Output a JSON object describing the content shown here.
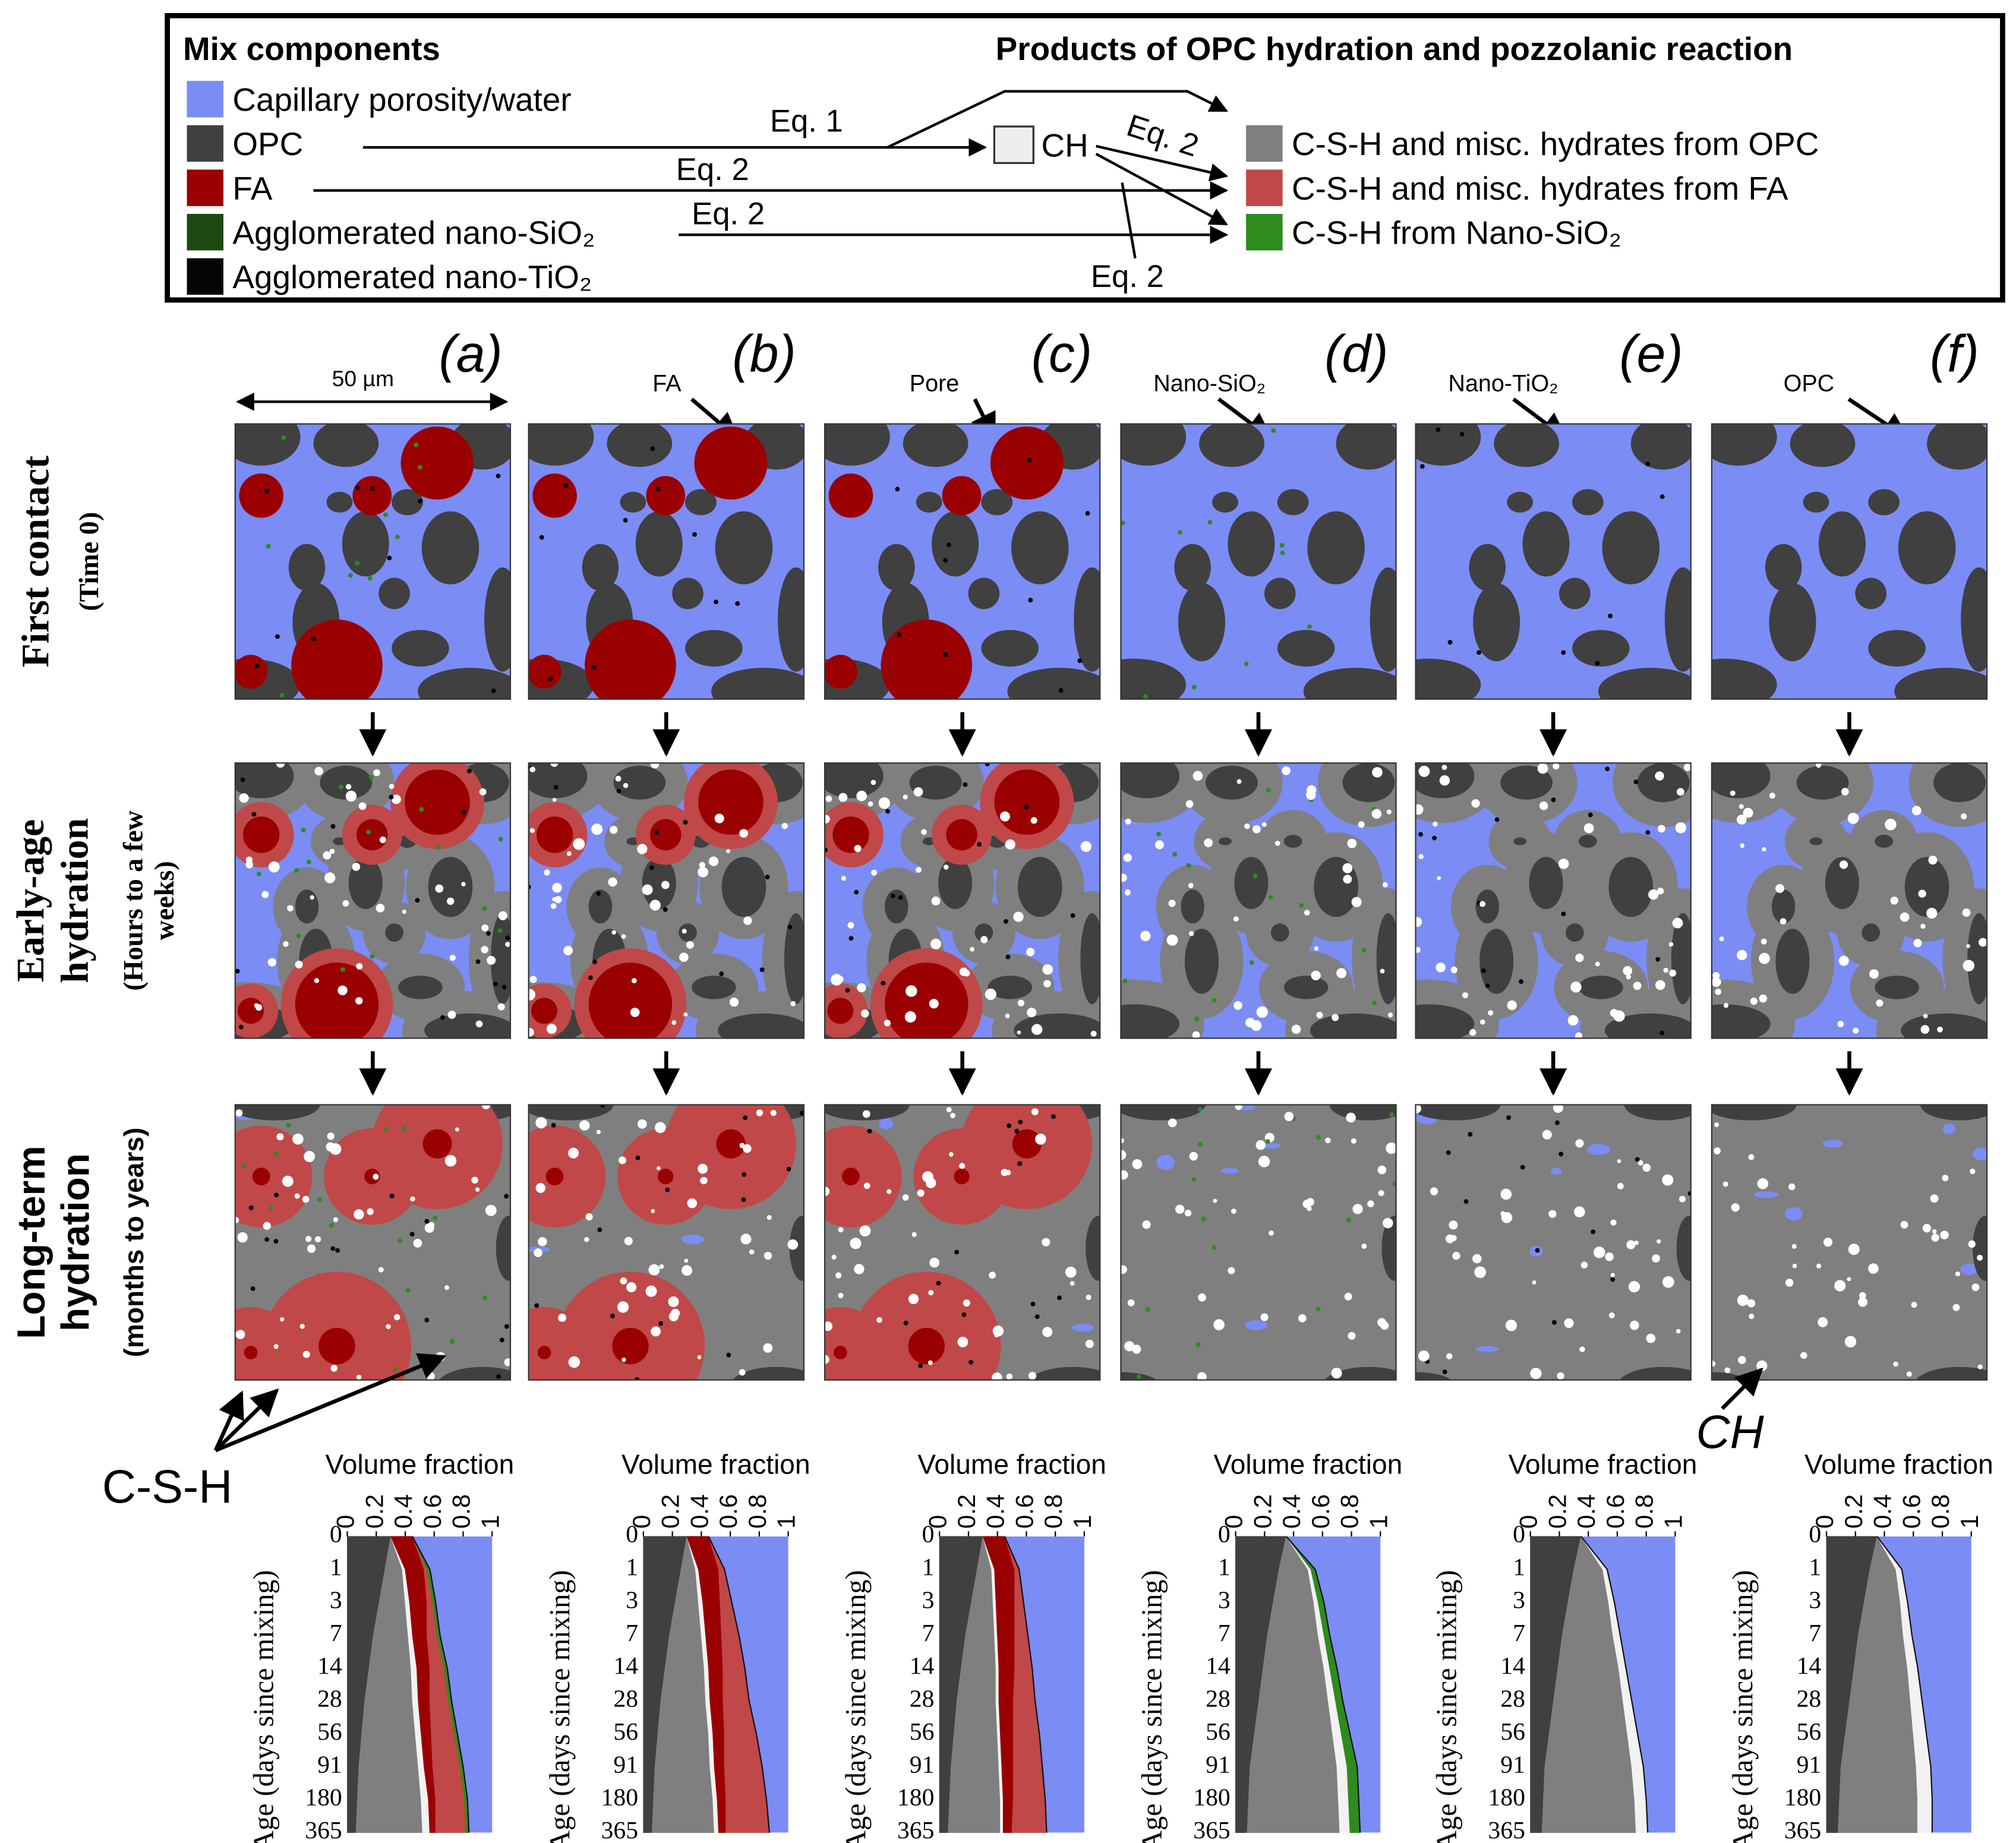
{
  "legend": {
    "left_title": "Mix components",
    "right_title": "Products of OPC hydration and pozzolanic reaction",
    "components": [
      {
        "label": "Capillary porosity/water",
        "color": "#7b8cf5"
      },
      {
        "label": "OPC",
        "color": "#404040"
      },
      {
        "label": "FA",
        "color": "#9b0000"
      },
      {
        "label": "Agglomerated nano-SiO₂",
        "color": "#1c4a12"
      },
      {
        "label": "Agglomerated nano-TiO₂",
        "color": "#050505"
      }
    ],
    "products": [
      {
        "label": "C-S-H and misc. hydrates from OPC",
        "color": "#7f7f7f"
      },
      {
        "label": "C-S-H and misc. hydrates from FA",
        "color": "#c04848"
      },
      {
        "label": "C-S-H from Nano-SiO₂",
        "color": "#2e8b1e"
      }
    ],
    "ch_label": "CH",
    "equations": [
      "Eq. 1",
      "Eq. 2",
      "Eq. 2",
      "Eq. 2",
      "Eq. 2"
    ]
  },
  "scale_bar": "50 µm",
  "panels": [
    {
      "label": "(a)"
    },
    {
      "label": "(b)",
      "annotation": "FA"
    },
    {
      "label": "(c)",
      "annotation": "Pore"
    },
    {
      "label": "(d)",
      "annotation": "Nano-SiO₂"
    },
    {
      "label": "(e)",
      "annotation": "Nano-TiO₂"
    },
    {
      "label": "(f)",
      "annotation": "OPC"
    }
  ],
  "row_labels": [
    {
      "title_lines": [
        "First contact"
      ],
      "subtitle_lines": [
        "(Time 0)"
      ],
      "color": "#7b2a12"
    },
    {
      "title_lines": [
        "Early-age",
        "hydration"
      ],
      "subtitle_lines": [
        "(Hours to a few",
        "weeks)"
      ],
      "color": "#000000"
    },
    {
      "title_lines": [
        "Long-term",
        "hydration"
      ],
      "subtitle_lines": [
        "(months to years)"
      ],
      "color": "#000000"
    }
  ],
  "callouts": [
    "C-S-H",
    "CH"
  ],
  "chart_data": [
    {
      "type": "area",
      "orientation": "horizontal",
      "x_label": "Volume fraction",
      "y_label": "Age (days since mixing)",
      "categories": [
        "0",
        "1",
        "3",
        "7",
        "14",
        "28",
        "56",
        "91",
        "180",
        "365"
      ],
      "xlim": [
        0,
        1
      ],
      "xticks": [
        0,
        0.2,
        0.4,
        0.6,
        0.8,
        1
      ],
      "plot_color": "#7b8cf5",
      "series": [
        {
          "color": "#404040",
          "values": [
            0.3,
            0.26,
            0.22,
            0.18,
            0.15,
            0.12,
            0.1,
            0.08,
            0.07,
            0.06
          ]
        },
        {
          "color": "#7f7f7f",
          "values": [
            0,
            0.12,
            0.18,
            0.24,
            0.29,
            0.33,
            0.37,
            0.41,
            0.44,
            0.46
          ]
        },
        {
          "color": "#f2f2f2",
          "values": [
            0,
            0.02,
            0.03,
            0.03,
            0.04,
            0.04,
            0.04,
            0.04,
            0.05,
            0.05
          ]
        },
        {
          "color": "#9b0000",
          "values": [
            0.15,
            0.13,
            0.12,
            0.1,
            0.09,
            0.08,
            0.07,
            0.06,
            0.05,
            0.04
          ]
        },
        {
          "color": "#c04848",
          "values": [
            0,
            0.02,
            0.04,
            0.07,
            0.1,
            0.13,
            0.16,
            0.19,
            0.2,
            0.21
          ]
        },
        {
          "color": "#2e8b1e",
          "values": [
            0,
            0.02,
            0.02,
            0.02,
            0.02,
            0.02,
            0.02,
            0.02,
            0.02,
            0.02
          ]
        }
      ]
    },
    {
      "type": "area",
      "orientation": "horizontal",
      "x_label": "Volume fraction",
      "y_label": "Age (days since mixing)",
      "categories": [
        "0",
        "1",
        "3",
        "7",
        "14",
        "28",
        "56",
        "91",
        "180",
        "365"
      ],
      "xlim": [
        0,
        1
      ],
      "xticks": [
        0,
        0.2,
        0.4,
        0.6,
        0.8,
        1
      ],
      "plot_color": "#7b8cf5",
      "series": [
        {
          "color": "#404040",
          "values": [
            0.3,
            0.26,
            0.22,
            0.18,
            0.15,
            0.12,
            0.1,
            0.08,
            0.07,
            0.06
          ]
        },
        {
          "color": "#7f7f7f",
          "values": [
            0,
            0.1,
            0.16,
            0.22,
            0.27,
            0.31,
            0.35,
            0.38,
            0.41,
            0.43
          ]
        },
        {
          "color": "#f2f2f2",
          "values": [
            0,
            0.02,
            0.03,
            0.03,
            0.03,
            0.03,
            0.03,
            0.03,
            0.03,
            0.03
          ]
        },
        {
          "color": "#9b0000",
          "values": [
            0.15,
            0.14,
            0.12,
            0.11,
            0.1,
            0.09,
            0.08,
            0.07,
            0.06,
            0.05
          ]
        },
        {
          "color": "#c04848",
          "values": [
            0,
            0.04,
            0.08,
            0.12,
            0.15,
            0.18,
            0.22,
            0.26,
            0.28,
            0.3
          ]
        }
      ]
    },
    {
      "type": "area",
      "orientation": "horizontal",
      "x_label": "Volume fraction",
      "y_label": "Age (days since mixing)",
      "categories": [
        "0",
        "1",
        "3",
        "7",
        "14",
        "28",
        "56",
        "91",
        "180",
        "365"
      ],
      "xlim": [
        0,
        1
      ],
      "xticks": [
        0,
        0.2,
        0.4,
        0.6,
        0.8,
        1
      ],
      "plot_color": "#7b8cf5",
      "series": [
        {
          "color": "#404040",
          "values": [
            0.3,
            0.26,
            0.22,
            0.18,
            0.15,
            0.12,
            0.1,
            0.08,
            0.07,
            0.06
          ]
        },
        {
          "color": "#7f7f7f",
          "values": [
            0,
            0.1,
            0.15,
            0.2,
            0.24,
            0.27,
            0.3,
            0.33,
            0.35,
            0.36
          ]
        },
        {
          "color": "#f2f2f2",
          "values": [
            0,
            0.02,
            0.02,
            0.02,
            0.02,
            0.02,
            0.02,
            0.02,
            0.02,
            0.02
          ]
        },
        {
          "color": "#9b0000",
          "values": [
            0.15,
            0.14,
            0.13,
            0.12,
            0.11,
            0.1,
            0.09,
            0.08,
            0.07,
            0.06
          ]
        },
        {
          "color": "#c04848",
          "values": [
            0,
            0.03,
            0.06,
            0.09,
            0.12,
            0.15,
            0.18,
            0.2,
            0.22,
            0.24
          ]
        }
      ]
    },
    {
      "type": "area",
      "orientation": "horizontal",
      "x_label": "Volume fraction",
      "y_label": "Age (days since mixing)",
      "categories": [
        "0",
        "1",
        "3",
        "7",
        "14",
        "28",
        "56",
        "91",
        "180",
        "365"
      ],
      "xlim": [
        0,
        1
      ],
      "xticks": [
        0,
        0.2,
        0.4,
        0.6,
        0.8,
        1
      ],
      "plot_color": "#7b8cf5",
      "series": [
        {
          "color": "#404040",
          "values": [
            0.35,
            0.3,
            0.26,
            0.22,
            0.19,
            0.16,
            0.13,
            0.1,
            0.09,
            0.08
          ]
        },
        {
          "color": "#7f7f7f",
          "values": [
            0,
            0.2,
            0.28,
            0.35,
            0.42,
            0.48,
            0.54,
            0.6,
            0.62,
            0.64
          ]
        },
        {
          "color": "#f2f2f2",
          "values": [
            0,
            0.02,
            0.03,
            0.04,
            0.04,
            0.05,
            0.06,
            0.07,
            0.07,
            0.07
          ]
        },
        {
          "color": "#2e8b1e",
          "values": [
            0,
            0.03,
            0.04,
            0.04,
            0.05,
            0.05,
            0.06,
            0.07,
            0.07,
            0.07
          ]
        }
      ]
    },
    {
      "type": "area",
      "orientation": "horizontal",
      "x_label": "Volume fraction",
      "y_label": "Age (days since mixing)",
      "categories": [
        "0",
        "1",
        "3",
        "7",
        "14",
        "28",
        "56",
        "91",
        "180",
        "365"
      ],
      "xlim": [
        0,
        1
      ],
      "xticks": [
        0,
        0.2,
        0.4,
        0.6,
        0.8,
        1
      ],
      "plot_color": "#7b8cf5",
      "series": [
        {
          "color": "#404040",
          "values": [
            0.35,
            0.3,
            0.26,
            0.22,
            0.19,
            0.16,
            0.13,
            0.1,
            0.09,
            0.08
          ]
        },
        {
          "color": "#7f7f7f",
          "values": [
            0,
            0.2,
            0.28,
            0.35,
            0.42,
            0.48,
            0.54,
            0.6,
            0.63,
            0.65
          ]
        },
        {
          "color": "#f2f2f2",
          "values": [
            0,
            0.03,
            0.04,
            0.05,
            0.05,
            0.06,
            0.07,
            0.08,
            0.08,
            0.08
          ]
        }
      ]
    },
    {
      "type": "area",
      "orientation": "horizontal",
      "x_label": "Volume fraction",
      "y_label": "Age (days since mixing)",
      "categories": [
        "0",
        "1",
        "3",
        "7",
        "14",
        "28",
        "56",
        "91",
        "180",
        "365"
      ],
      "xlim": [
        0,
        1
      ],
      "xticks": [
        0,
        0.2,
        0.4,
        0.6,
        0.8,
        1
      ],
      "plot_color": "#7b8cf5",
      "series": [
        {
          "color": "#404040",
          "values": [
            0.35,
            0.3,
            0.26,
            0.22,
            0.19,
            0.16,
            0.13,
            0.1,
            0.09,
            0.08
          ]
        },
        {
          "color": "#7f7f7f",
          "values": [
            0,
            0.18,
            0.25,
            0.31,
            0.37,
            0.42,
            0.47,
            0.52,
            0.54,
            0.55
          ]
        },
        {
          "color": "#f2f2f2",
          "values": [
            0,
            0.04,
            0.05,
            0.06,
            0.07,
            0.08,
            0.09,
            0.1,
            0.1,
            0.1
          ]
        }
      ]
    }
  ]
}
